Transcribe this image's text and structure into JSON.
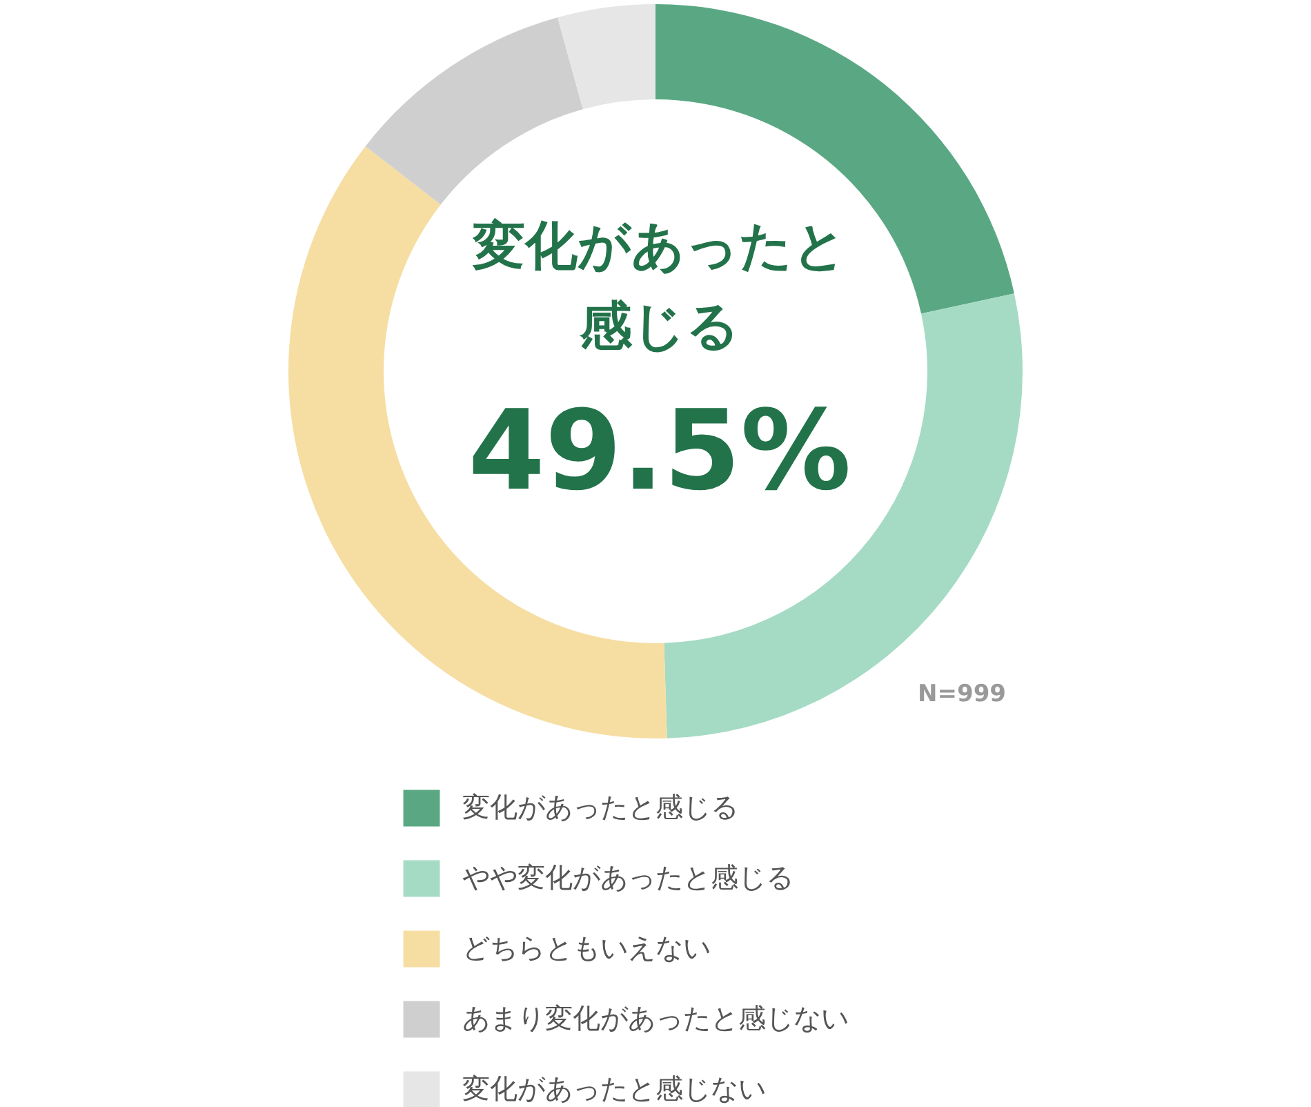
{
  "chart_data": {
    "type": "donut",
    "categories": [
      "変化があったと感じる",
      "やや変化があったと感じる",
      "どちらともいえない",
      "あまり変化があったと感じない",
      "変化があったと感じない"
    ],
    "values": [
      21.6,
      27.9,
      36.0,
      10.2,
      4.3
    ],
    "colors": [
      "#5aa883",
      "#a5dbc5",
      "#f6dea3",
      "#d0cfd0",
      "#e6e6e6"
    ],
    "annotations": [
      "変化があったと",
      "感じる",
      "49.5%",
      "N=999"
    ],
    "legend": "bottom"
  }
}
